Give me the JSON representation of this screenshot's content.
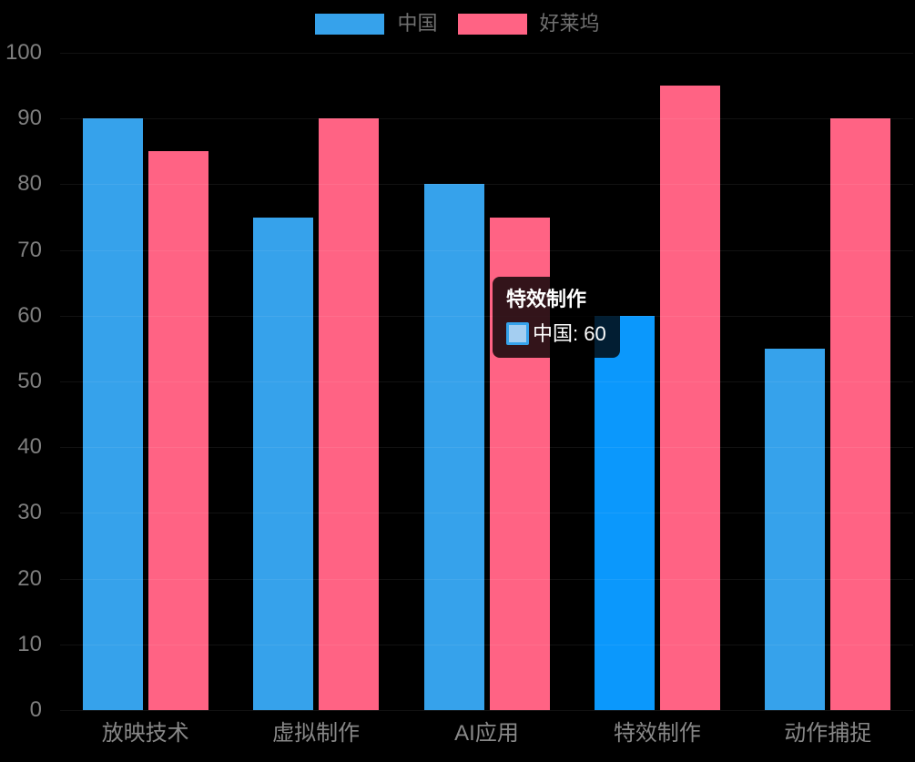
{
  "chart_data": {
    "type": "bar",
    "title": "",
    "xlabel": "",
    "ylabel": "",
    "categories": [
      "放映技术",
      "虚拟制作",
      "AI应用",
      "特效制作",
      "动作捕捉"
    ],
    "series": [
      {
        "name": "中国",
        "color": "#36A2EB",
        "values": [
          90,
          75,
          80,
          60,
          55
        ]
      },
      {
        "name": "好莱坞",
        "color": "#FF6384",
        "values": [
          85,
          90,
          75,
          95,
          90
        ]
      }
    ],
    "ylim": [
      0,
      100
    ],
    "ytick_step": 10,
    "ytick_labels": [
      "0",
      "10",
      "20",
      "30",
      "40",
      "50",
      "60",
      "70",
      "80",
      "90",
      "100"
    ],
    "grid": true,
    "legend_position": "top",
    "highlight": {
      "series_index": 0,
      "category_index": 3
    }
  },
  "tooltip": {
    "title": "特效制作",
    "series_label": "中国",
    "value": "60",
    "text": "中国: 60"
  },
  "colors": {
    "background": "#000000",
    "bar_blue": "#36A2EB",
    "bar_pink": "#FF6384",
    "bar_blue_hover": "#0B98FC",
    "y_axis_label": "#7F7F7F",
    "x_axis_label": "#888888",
    "legend_label": "#707070",
    "gridline": "rgba(255,255,255,0.07)",
    "tooltip_background": "rgba(0,0,0,0.8)",
    "tooltip_text": "#FFFFFF",
    "tooltip_swatch_fill": "#A4CEF1",
    "tooltip_swatch_border": "#36A2EB"
  }
}
